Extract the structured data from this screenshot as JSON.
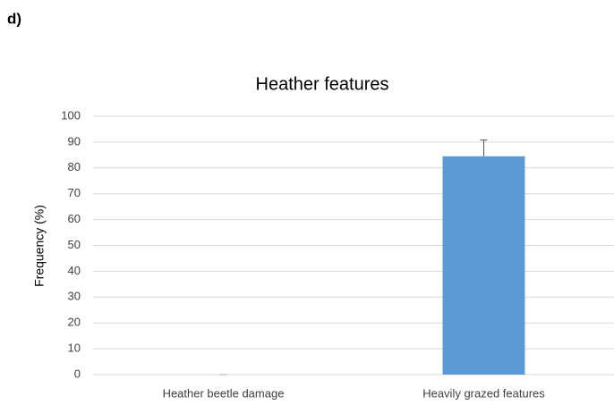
{
  "chart_data": {
    "type": "bar",
    "panel_label": "d)",
    "title": "Heather features",
    "y_label": "Frequency (%)",
    "categories": [
      "Heather beetle damage",
      "Heavily grazed features"
    ],
    "values": [
      0,
      84.5
    ],
    "errors": [
      0,
      6.3
    ],
    "color": "#5b9bd5",
    "ylim": [
      0,
      100
    ],
    "yticks": [
      0,
      10,
      20,
      30,
      40,
      50,
      60,
      70,
      80,
      90,
      100
    ],
    "grid": true
  }
}
